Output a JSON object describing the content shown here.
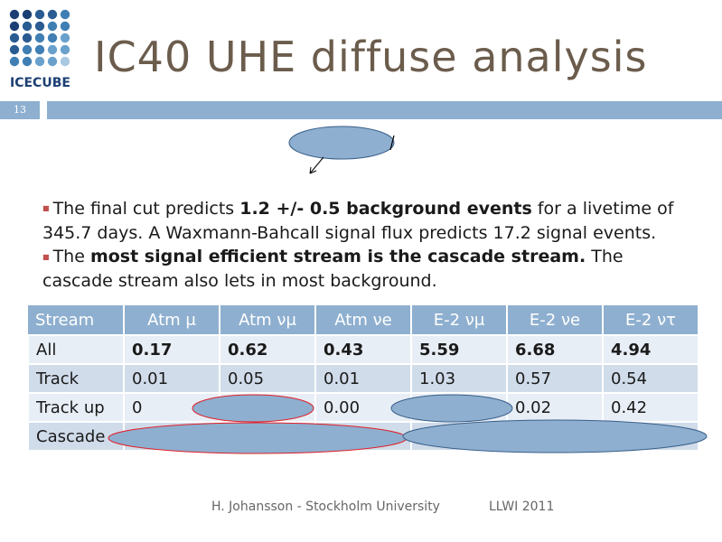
{
  "logo": {
    "text": "ICECUBE"
  },
  "title": "IC40 UHE diffuse analysis",
  "slide_number": "13",
  "paragraphs": [
    {
      "pre": "The final cut predicts ",
      "bold": "1.2 +/- 0.5 background events",
      "post": " for a livetime of 345.7 days. A Waxmann-Bahcall signal flux predicts 17.2 signal events."
    },
    {
      "pre": "The ",
      "bold": "most signal efficient stream is the cascade stream.",
      "post": " The cascade stream also lets in most background."
    }
  ],
  "table": {
    "headers": [
      "Stream",
      "Atm μ",
      "Atm νμ",
      "Atm νe",
      "E-2 νμ",
      "E-2 νe",
      "E-2 ντ"
    ],
    "rows": [
      [
        "All",
        "0.17",
        "0.62",
        "0.43",
        "5.59",
        "6.68",
        "4.94"
      ],
      [
        "Track",
        "0.01",
        "0.05",
        "0.01",
        "1.03",
        "0.57",
        "0.54"
      ],
      [
        "Track up",
        "0",
        "",
        "0.00",
        "",
        "0.02",
        "0.42"
      ],
      [
        "Cascade",
        "",
        "",
        "",
        "",
        "",
        ""
      ]
    ]
  },
  "footer": {
    "author": "H. Johansson - Stockholm University",
    "event": "LLWI 2011"
  },
  "colors": {
    "title": "#6b5c4c",
    "band": "#8eafcf",
    "ellipse_fill": "#8eafcf",
    "ellipse_stroke": "#e0202a"
  }
}
